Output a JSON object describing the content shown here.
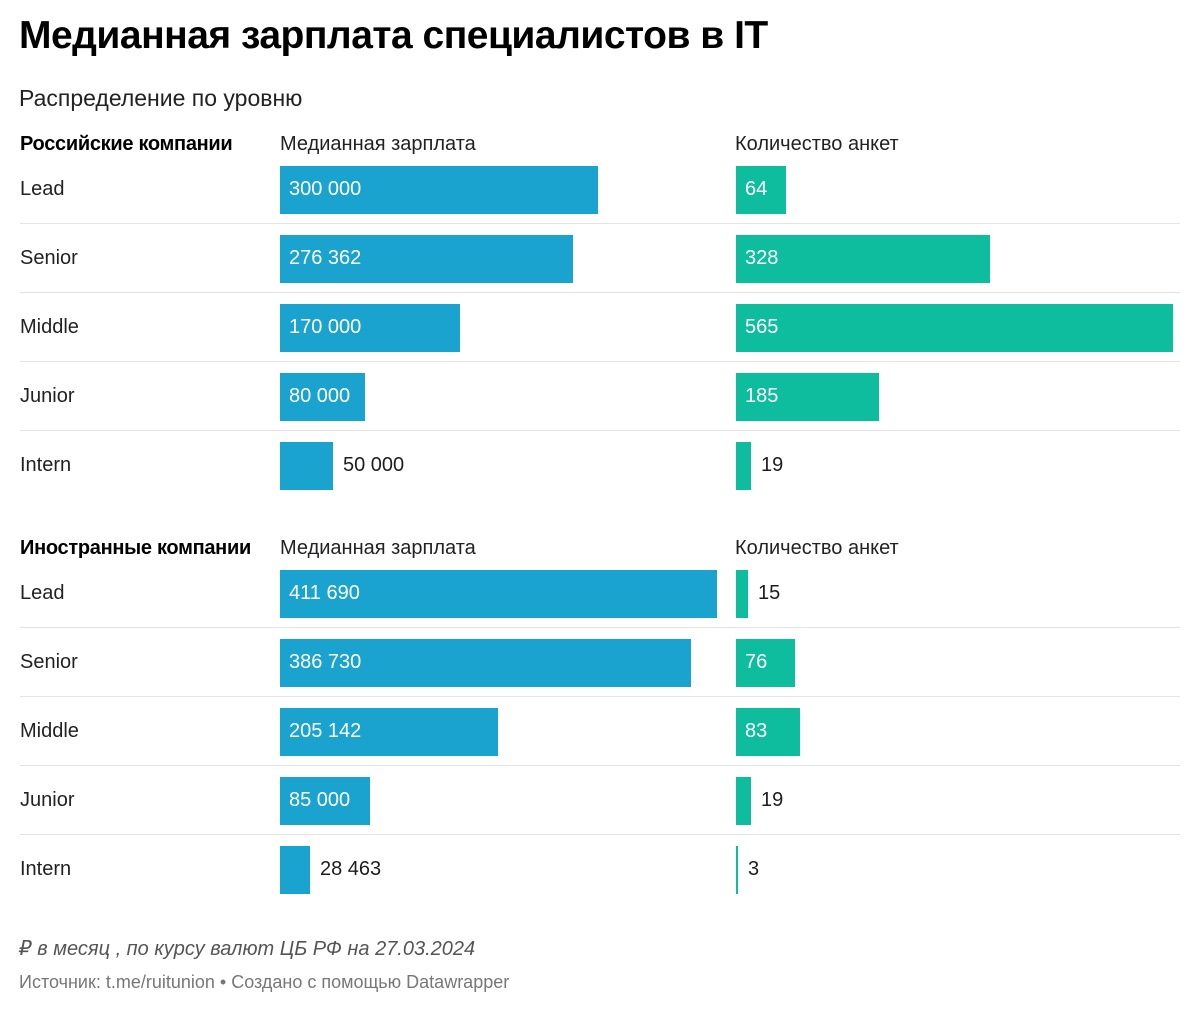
{
  "title": "Медианная зарплата специалистов в IT",
  "subtitle": "Распределение по уровню",
  "salary_header": "Медианная зарплата",
  "count_header": "Количество анкет",
  "colors": {
    "salary": "#1ba3cf",
    "count": "#0dbd9e"
  },
  "chart_data": [
    {
      "type": "bar",
      "title": "Российские компании",
      "categories": [
        "Lead",
        "Senior",
        "Middle",
        "Junior",
        "Intern"
      ],
      "series": [
        {
          "name": "Медианная зарплата",
          "values": [
            300000,
            276362,
            170000,
            80000,
            50000
          ],
          "labels": [
            "300 000",
            "276 362",
            "170 000",
            "80 000",
            "50 000"
          ]
        },
        {
          "name": "Количество анкет",
          "values": [
            64,
            328,
            565,
            185,
            19
          ],
          "labels": [
            "64",
            "328",
            "565",
            "185",
            "19"
          ]
        }
      ]
    },
    {
      "type": "bar",
      "title": "Иностранные компании",
      "categories": [
        "Lead",
        "Senior",
        "Middle",
        "Junior",
        "Intern"
      ],
      "series": [
        {
          "name": "Медианная зарплата",
          "values": [
            411690,
            386730,
            205142,
            85000,
            28463
          ],
          "labels": [
            "411 690",
            "386 730",
            "205 142",
            "85 000",
            "28 463"
          ]
        },
        {
          "name": "Количество анкет",
          "values": [
            15,
            76,
            83,
            19,
            3
          ],
          "labels": [
            "15",
            "76",
            "83",
            "19",
            "3"
          ]
        }
      ]
    }
  ],
  "note": "₽ в месяц , по курсу валют ЦБ РФ на 27.03.2024",
  "source": "Источник: t.me/ruitunion • Создано с помощью Datawrapper"
}
